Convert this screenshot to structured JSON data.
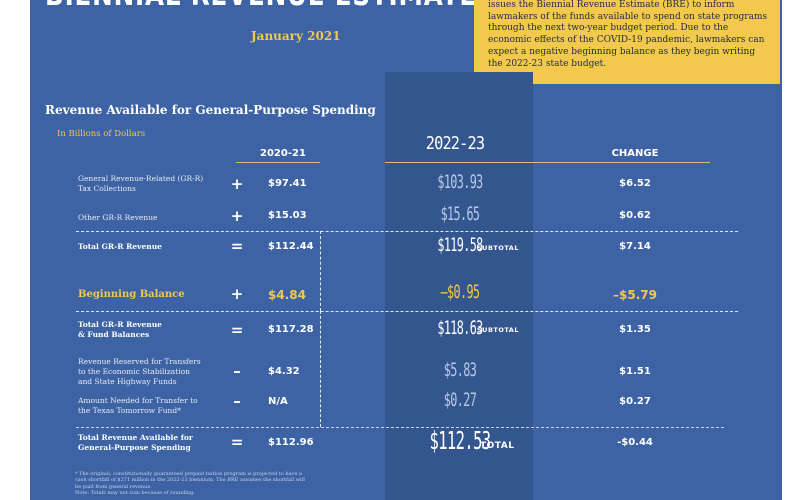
{
  "header": {
    "title": "BIENNIAL REVENUE ESTIMATE",
    "date": "January 2021"
  },
  "intro": {
    "lines": [
      "issues the Biennial Revenue Estimate (BRE) to inform",
      "lawmakers of the funds available to spend on state programs",
      "through the next two-year budget period. Due to the",
      "economic effects of the COVID-19 pandemic, lawmakers can",
      "expect a negative beginning balance as they begin writing",
      "the 2022-23 state budget."
    ]
  },
  "table": {
    "title": "Revenue Available for General-Purpose Spending",
    "units": "In Billions of Dollars",
    "col_2020_21": "2020-21",
    "col_2022_23": "2022-23",
    "col_change": "CHANGE",
    "rows": [
      {
        "label_lines": [
          "General Revenue-Related (GR-R)",
          "Tax Collections"
        ],
        "op": "+",
        "v2020": "$97.41",
        "v2022": "$103.93",
        "tag": "",
        "change": "$6.52"
      },
      {
        "label_lines": [
          "Other GR-R Revenue"
        ],
        "op": "+",
        "v2020": "$15.03",
        "v2022": "$15.65",
        "tag": "",
        "change": "$0.62"
      },
      {
        "label_lines": [
          "Total GR-R Revenue"
        ],
        "op": "=",
        "v2020": "$112.44",
        "v2022": "$119.58",
        "tag": "SUBTOTAL",
        "change": "$7.14"
      },
      {
        "label_lines": [
          "Beginning Balance"
        ],
        "op": "+",
        "v2020": "$4.84",
        "v2022": "–$0.95",
        "tag": "",
        "change": "–$5.79"
      },
      {
        "label_lines": [
          "Total GR-R Revenue",
          "& Fund Balances"
        ],
        "op": "=",
        "v2020": "$117.28",
        "v2022": "$118.63",
        "tag": "SUBTOTAL",
        "change": "$1.35"
      },
      {
        "label_lines": [
          "Revenue Reserved for Transfers",
          "to the Economic Stabilization",
          "and State Highway Funds"
        ],
        "op": "–",
        "v2020": "$4.32",
        "v2022": "$5.83",
        "tag": "",
        "change": "$1.51"
      },
      {
        "label_lines": [
          "Amount Needed for Transfer to",
          "the Texas Tomorrow Fund*"
        ],
        "op": "–",
        "v2020": "N/A",
        "v2022": "$0.27",
        "tag": "",
        "change": "$0.27"
      },
      {
        "label_lines": [
          "Total Revenue Available for",
          "General-Purpose Spending"
        ],
        "op": "=",
        "v2020": "$112.96",
        "v2022": "$112.53",
        "tag": "TOTAL",
        "change": "-$0.44"
      }
    ]
  },
  "footnote": {
    "lines": [
      "* The original, constitutionally guaranteed prepaid tuition program is projected to have a",
      "cash shortfall of $271 million in the 2022-23 biennium. The BRE assumes the shortfall will",
      "be paid from general revenue.",
      "Note: Totals may not sum because of rounding."
    ]
  },
  "colors": {
    "panel": "#3d63a4",
    "highlight_column": "#34568f",
    "accent_yellow": "#f2c94c"
  }
}
